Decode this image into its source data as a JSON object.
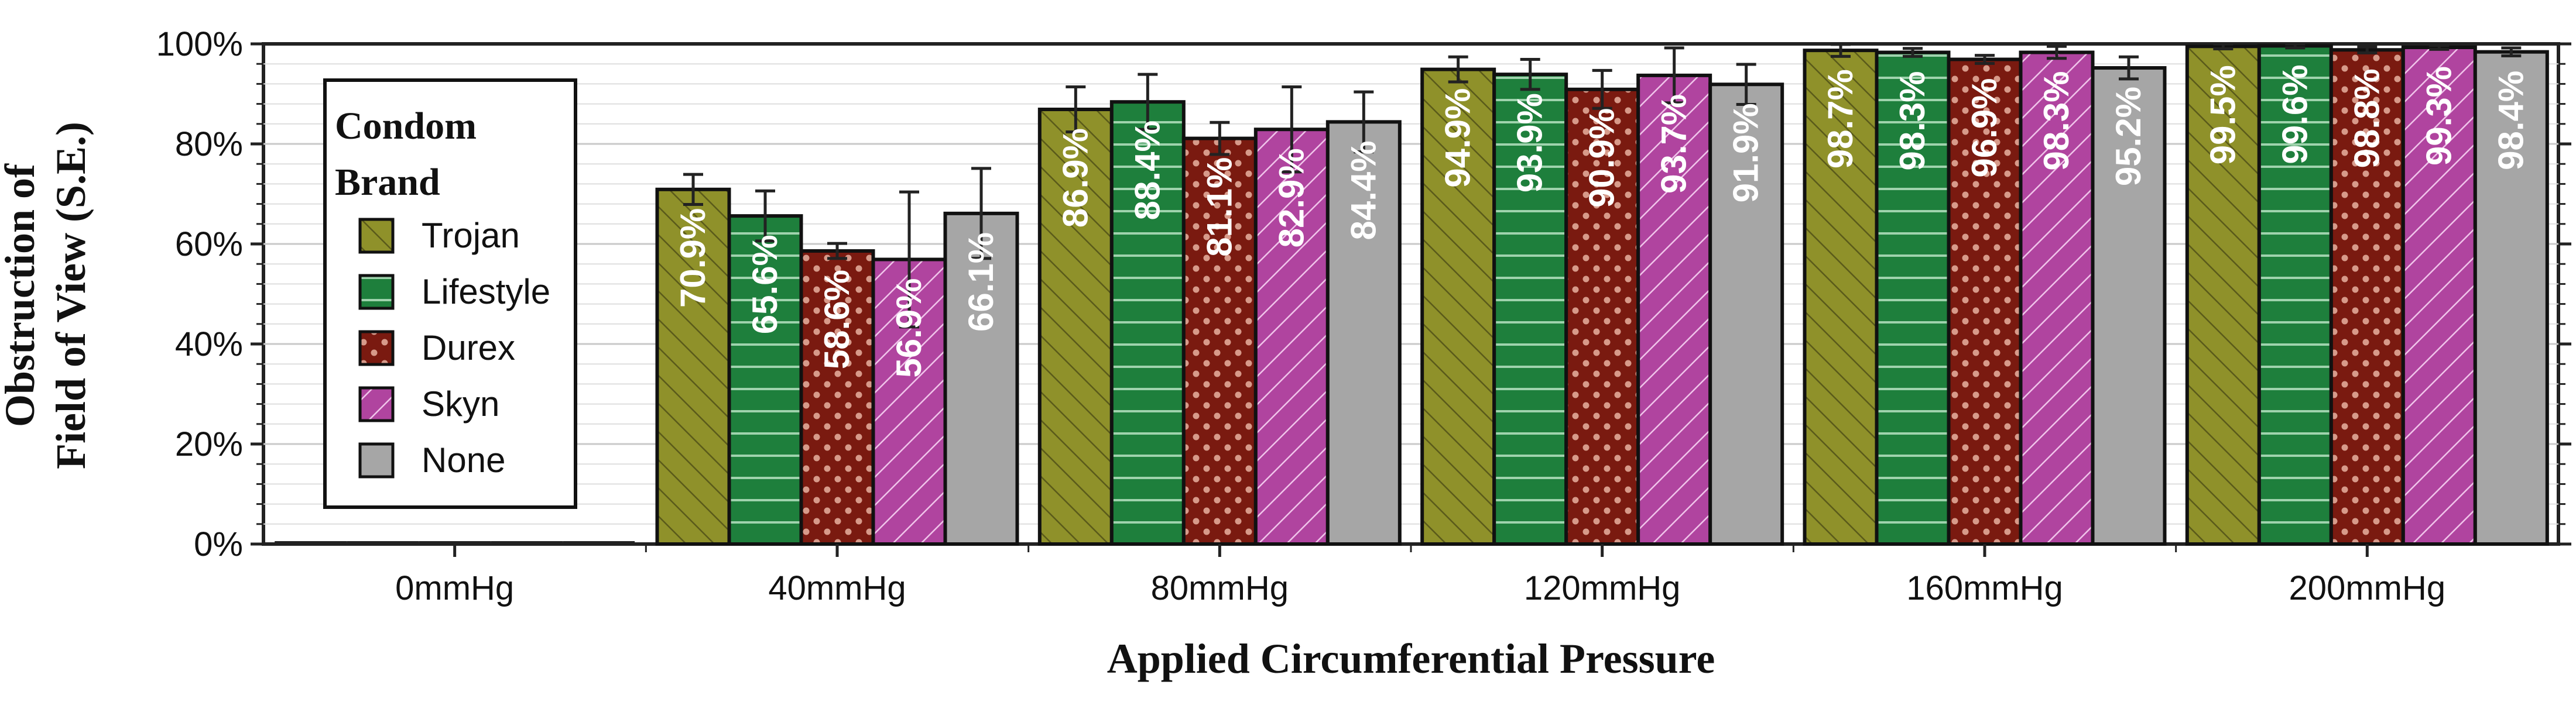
{
  "chart_data": {
    "type": "bar",
    "title": "",
    "xlabel": "Applied Circumferential Pressure",
    "ylabel_lines": [
      "Obstruction of",
      "Field of View (S.E.)"
    ],
    "ylim": [
      0,
      100
    ],
    "yticks": [
      "0%",
      "20%",
      "40%",
      "60%",
      "80%",
      "100%"
    ],
    "grid": "horizontal minor",
    "legend": {
      "title_lines": [
        "Condom",
        "Brand"
      ],
      "placement": "top-left"
    },
    "categories": [
      "0mmHg",
      "40mmHg",
      "80mmHg",
      "120mmHg",
      "160mmHg",
      "200mmHg"
    ],
    "series": [
      {
        "name": "Trojan",
        "color": "#8f912a",
        "pattern": "diagonal-lines",
        "values": [
          0,
          70.9,
          86.9,
          94.9,
          98.7,
          99.5
        ],
        "labels": [
          "",
          "70.9%",
          "86.9%",
          "94.9%",
          "98.7%",
          "99.5%"
        ],
        "errors": [
          0,
          3,
          4.5,
          2.5,
          1.2,
          0.5
        ]
      },
      {
        "name": "Lifestyle",
        "color": "#1e7f3c",
        "pattern": "horizontal-lines",
        "values": [
          0,
          65.6,
          88.4,
          93.9,
          98.3,
          99.6
        ],
        "labels": [
          "",
          "65.6%",
          "88.4%",
          "93.9%",
          "98.3%",
          "99.6%"
        ],
        "errors": [
          0,
          5,
          5.5,
          3,
          0.8,
          0.4
        ]
      },
      {
        "name": "Durex",
        "color": "#7a1a10",
        "pattern": "dots",
        "values": [
          0,
          58.6,
          81.1,
          90.9,
          96.9,
          98.8
        ],
        "labels": [
          "",
          "58.6%",
          "81.1%",
          "90.9%",
          "96.9%",
          "98.8%"
        ],
        "errors": [
          0,
          1.5,
          3.2,
          3.8,
          0.8,
          0.6
        ]
      },
      {
        "name": "Skyn",
        "color": "#b0449f",
        "pattern": "diagonal-lines-reverse",
        "values": [
          0,
          56.9,
          82.9,
          93.7,
          98.3,
          99.3
        ],
        "labels": [
          "",
          "56.9%",
          "82.9%",
          "93.7%",
          "98.3%",
          "99.3%"
        ],
        "errors": [
          0,
          13.5,
          8.5,
          5.5,
          1.2,
          0.4
        ]
      },
      {
        "name": "None",
        "color": "#a6a6a6",
        "pattern": "solid",
        "values": [
          0,
          66.1,
          84.4,
          91.9,
          95.2,
          98.4
        ],
        "labels": [
          "",
          "66.1%",
          "84.4%",
          "91.9%",
          "95.2%",
          "98.4%"
        ],
        "errors": [
          0,
          9,
          6,
          4,
          2.2,
          0.8
        ]
      }
    ]
  }
}
